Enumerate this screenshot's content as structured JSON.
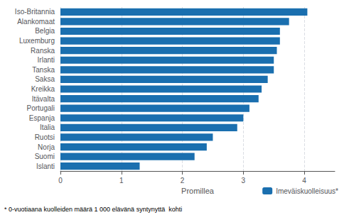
{
  "chart_data": {
    "type": "bar",
    "orientation": "horizontal",
    "categories": [
      "Islanti",
      "Suomi",
      "Norja",
      "Ruotsi",
      "Italia",
      "Espanja",
      "Portugali",
      "Itävalta",
      "Kreikka",
      "Saksa",
      "Tanska",
      "Irlanti",
      "Ranska",
      "Luxemburg",
      "Belgia",
      "Alankomaat",
      "Iso-Britannia"
    ],
    "series": [
      {
        "name": "Imeväiskuolleisuus*",
        "color": "#1A6FAF",
        "values": [
          1.3,
          2.2,
          2.4,
          2.5,
          2.9,
          3.0,
          3.1,
          3.25,
          3.3,
          3.4,
          3.5,
          3.5,
          3.55,
          3.6,
          3.6,
          3.75,
          4.05
        ]
      }
    ],
    "xlabel": "Promillea",
    "xlim": [
      0,
      4.5
    ],
    "xticks": [
      0,
      1,
      2,
      3,
      4
    ],
    "grid": true,
    "legend": "lower right",
    "annotation": "* 0-vuotiaana kuolleiden määrä 1 000 elävänä syntynyttä  kohti"
  }
}
